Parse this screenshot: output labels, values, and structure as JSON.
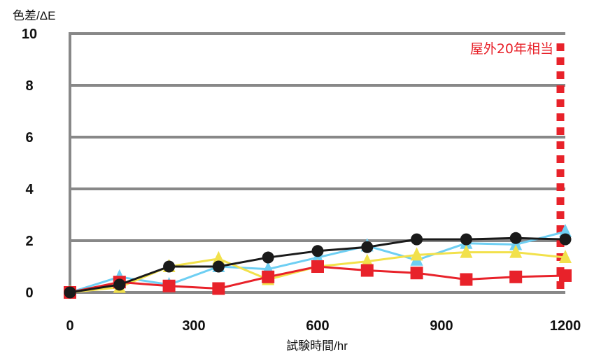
{
  "chart_data": {
    "type": "line",
    "ylabel": "色差/ΔE",
    "xlabel": "試験時間/hr",
    "xlim": [
      0,
      1200
    ],
    "ylim": [
      0,
      10
    ],
    "x_ticks": [
      0,
      300,
      600,
      900,
      1200
    ],
    "y_ticks": [
      0,
      2,
      4,
      6,
      8,
      10
    ],
    "grid": "horizontal",
    "x": [
      0,
      120,
      240,
      360,
      480,
      600,
      720,
      840,
      960,
      1080,
      1200
    ],
    "series": [
      {
        "color": "#6ecff3",
        "marker": "triangle",
        "values": [
          0,
          0.6,
          0.3,
          1.0,
          0.9,
          1.35,
          1.8,
          1.25,
          1.9,
          1.85,
          2.35
        ]
      },
      {
        "color": "#f2e14b",
        "marker": "triangle",
        "values": [
          0,
          0.2,
          1.0,
          1.3,
          0.5,
          1.0,
          1.2,
          1.45,
          1.55,
          1.55,
          1.35
        ]
      },
      {
        "color": "#e8222a",
        "marker": "square",
        "values": [
          0,
          0.4,
          0.25,
          0.15,
          0.6,
          1.0,
          0.85,
          0.75,
          0.5,
          0.6,
          0.65
        ]
      },
      {
        "color": "#1a1a1a",
        "marker": "circle",
        "values": [
          0,
          0.3,
          1.0,
          1.0,
          1.35,
          1.6,
          1.75,
          2.05,
          2.05,
          2.1,
          2.05
        ]
      }
    ],
    "annotation": {
      "text": "屋外20年相当",
      "x": 1200,
      "color": "#e8222a"
    }
  }
}
